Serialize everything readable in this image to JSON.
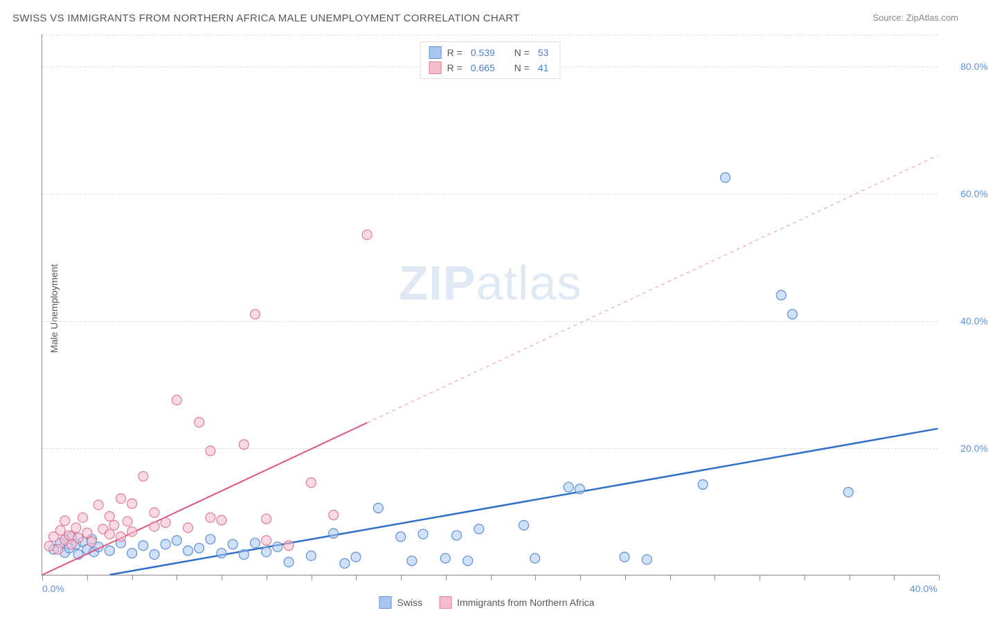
{
  "title": "SWISS VS IMMIGRANTS FROM NORTHERN AFRICA MALE UNEMPLOYMENT CORRELATION CHART",
  "source": "Source: ZipAtlas.com",
  "y_axis_label": "Male Unemployment",
  "watermark_bold": "ZIP",
  "watermark_light": "atlas",
  "chart": {
    "type": "scatter",
    "xlim": [
      0,
      40
    ],
    "ylim": [
      0,
      85
    ],
    "x_tick_step": 2,
    "x_tick_labels": [
      {
        "pos": 0,
        "label": "0.0%"
      },
      {
        "pos": 40,
        "label": "40.0%"
      }
    ],
    "y_gridlines": [
      20,
      40,
      60,
      80,
      85
    ],
    "y_tick_labels": [
      {
        "pos": 20,
        "label": "20.0%"
      },
      {
        "pos": 40,
        "label": "40.0%"
      },
      {
        "pos": 60,
        "label": "60.0%"
      },
      {
        "pos": 80,
        "label": "80.0%"
      }
    ],
    "background_color": "#ffffff",
    "grid_color": "#dddddd",
    "marker_radius": 7,
    "series": [
      {
        "name": "Swiss",
        "color_fill": "#a9c6ee",
        "color_stroke": "#5b8fd6",
        "trend": {
          "x1": 3,
          "y1": 0,
          "x2": 40,
          "y2": 23,
          "solid_until_x": 40,
          "color": "#2e6fc9",
          "width": 2.5
        },
        "points": [
          [
            0.5,
            4
          ],
          [
            0.8,
            5
          ],
          [
            1,
            3.5
          ],
          [
            1,
            5.5
          ],
          [
            1.2,
            4.2
          ],
          [
            1.3,
            6
          ],
          [
            1.5,
            4.8
          ],
          [
            1.6,
            3.2
          ],
          [
            1.8,
            5.2
          ],
          [
            2,
            4
          ],
          [
            2.2,
            5.6
          ],
          [
            2.3,
            3.6
          ],
          [
            2.5,
            4.4
          ],
          [
            3,
            3.8
          ],
          [
            3.5,
            5
          ],
          [
            4,
            3.4
          ],
          [
            4.5,
            4.6
          ],
          [
            5,
            3.2
          ],
          [
            5.5,
            4.8
          ],
          [
            6,
            5.4
          ],
          [
            6.5,
            3.8
          ],
          [
            7,
            4.2
          ],
          [
            7.5,
            5.6
          ],
          [
            8,
            3.4
          ],
          [
            8.5,
            4.8
          ],
          [
            9,
            3.2
          ],
          [
            9.5,
            5
          ],
          [
            10,
            3.6
          ],
          [
            10.5,
            4.4
          ],
          [
            11,
            2
          ],
          [
            12,
            3
          ],
          [
            13,
            6.5
          ],
          [
            13.5,
            1.8
          ],
          [
            14,
            2.8
          ],
          [
            15,
            10.5
          ],
          [
            16,
            6
          ],
          [
            16.5,
            2.2
          ],
          [
            17,
            6.4
          ],
          [
            18,
            2.6
          ],
          [
            18.5,
            6.2
          ],
          [
            19,
            2.2
          ],
          [
            19.5,
            7.2
          ],
          [
            21.5,
            7.8
          ],
          [
            22,
            2.6
          ],
          [
            23.5,
            13.8
          ],
          [
            24,
            13.5
          ],
          [
            26,
            2.8
          ],
          [
            27,
            2.4
          ],
          [
            29.5,
            14.2
          ],
          [
            30.5,
            62.5
          ],
          [
            33,
            44
          ],
          [
            33.5,
            41
          ],
          [
            36,
            13
          ]
        ]
      },
      {
        "name": "Immigrants from Northern Africa",
        "color_fill": "#f5bccb",
        "color_stroke": "#e07a98",
        "trend": {
          "x1": 0,
          "y1": 0,
          "x2": 40,
          "y2": 66,
          "solid_until_x": 14.5,
          "color": "#e15579",
          "width": 2
        },
        "points": [
          [
            0.3,
            4.5
          ],
          [
            0.5,
            6
          ],
          [
            0.7,
            4
          ],
          [
            0.8,
            7
          ],
          [
            1,
            5.5
          ],
          [
            1,
            8.5
          ],
          [
            1.2,
            6.2
          ],
          [
            1.3,
            4.8
          ],
          [
            1.5,
            7.4
          ],
          [
            1.6,
            5.8
          ],
          [
            1.8,
            9
          ],
          [
            2,
            6.6
          ],
          [
            2.2,
            5.2
          ],
          [
            2.5,
            11
          ],
          [
            2.7,
            7.2
          ],
          [
            3,
            6.4
          ],
          [
            3,
            9.2
          ],
          [
            3.2,
            7.8
          ],
          [
            3.5,
            6
          ],
          [
            3.5,
            12
          ],
          [
            3.8,
            8.4
          ],
          [
            4,
            6.8
          ],
          [
            4,
            11.2
          ],
          [
            4.5,
            15.5
          ],
          [
            5,
            7.6
          ],
          [
            5,
            9.8
          ],
          [
            5.5,
            8.2
          ],
          [
            6,
            27.5
          ],
          [
            6.5,
            7.4
          ],
          [
            7,
            24
          ],
          [
            7.5,
            9
          ],
          [
            7.5,
            19.5
          ],
          [
            8,
            8.6
          ],
          [
            9,
            20.5
          ],
          [
            9.5,
            41
          ],
          [
            10,
            5.4
          ],
          [
            10,
            8.8
          ],
          [
            11,
            4.6
          ],
          [
            12,
            14.5
          ],
          [
            13,
            9.4
          ],
          [
            14.5,
            53.5
          ]
        ]
      }
    ],
    "legend_top": [
      {
        "swatch_fill": "#a9c6ee",
        "swatch_stroke": "#5b8fd6",
        "r_label": "R =",
        "r_val": "0.539",
        "n_label": "N =",
        "n_val": "53"
      },
      {
        "swatch_fill": "#f5bccb",
        "swatch_stroke": "#e07a98",
        "r_label": "R =",
        "r_val": "0.665",
        "n_label": "N =",
        "n_val": "41"
      }
    ],
    "legend_bottom": [
      {
        "swatch_fill": "#a9c6ee",
        "swatch_stroke": "#5b8fd6",
        "label": "Swiss"
      },
      {
        "swatch_fill": "#f5bccb",
        "swatch_stroke": "#e07a98",
        "label": "Immigrants from Northern Africa"
      }
    ]
  }
}
